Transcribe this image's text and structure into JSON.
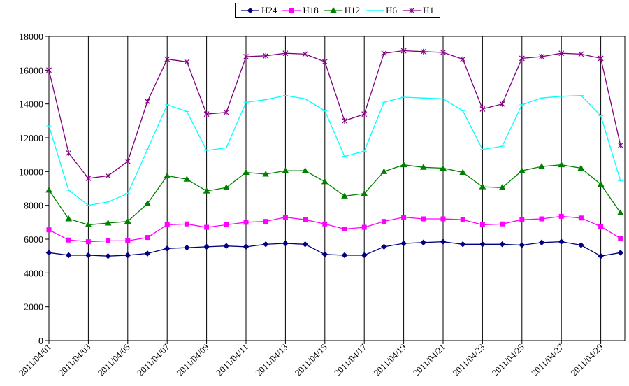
{
  "chart_data": {
    "type": "line",
    "title": "",
    "xlabel": "",
    "ylabel": "",
    "ylim": [
      0,
      18000
    ],
    "yticks": [
      0,
      2000,
      4000,
      6000,
      8000,
      10000,
      12000,
      14000,
      16000,
      18000
    ],
    "x": [
      "2011/04/01",
      "2011/04/02",
      "2011/04/03",
      "2011/04/04",
      "2011/04/05",
      "2011/04/06",
      "2011/04/07",
      "2011/04/08",
      "2011/04/09",
      "2011/04/10",
      "2011/04/11",
      "2011/04/12",
      "2011/04/13",
      "2011/04/14",
      "2011/04/15",
      "2011/04/16",
      "2011/04/17",
      "2011/04/18",
      "2011/04/19",
      "2011/04/20",
      "2011/04/21",
      "2011/04/22",
      "2011/04/23",
      "2011/04/24",
      "2011/04/25",
      "2011/04/26",
      "2011/04/27",
      "2011/04/28",
      "2011/04/29",
      "2011/04/30"
    ],
    "xtick_labels": [
      "2011/04/01",
      "2011/04/03",
      "2011/04/05",
      "2011/04/07",
      "2011/04/09",
      "2011/04/11",
      "2011/04/13",
      "2011/04/15",
      "2011/04/17",
      "2011/04/19",
      "2011/04/21",
      "2011/04/23",
      "2011/04/25",
      "2011/04/27",
      "2011/04/29"
    ],
    "grid": "vertical",
    "legend_position": "top-center",
    "series": [
      {
        "name": "H24",
        "color": "#000080",
        "marker": "diamond",
        "values": [
          5200,
          5050,
          5050,
          5000,
          5050,
          5150,
          5450,
          5500,
          5550,
          5600,
          5550,
          5700,
          5750,
          5700,
          5100,
          5050,
          5050,
          5550,
          5750,
          5800,
          5850,
          5700,
          5700,
          5700,
          5650,
          5800,
          5850,
          5650,
          5000,
          5200
        ]
      },
      {
        "name": "H18",
        "color": "#ff00ff",
        "marker": "square",
        "values": [
          6550,
          5950,
          5850,
          5900,
          5900,
          6100,
          6850,
          6900,
          6700,
          6850,
          7000,
          7050,
          7300,
          7150,
          6900,
          6600,
          6700,
          7050,
          7300,
          7200,
          7200,
          7150,
          6850,
          6900,
          7150,
          7200,
          7350,
          7250,
          6750,
          6050
        ]
      },
      {
        "name": "H12",
        "color": "#008000",
        "marker": "triangle",
        "values": [
          8900,
          7200,
          6850,
          6950,
          7050,
          8100,
          9750,
          9550,
          8850,
          9050,
          9950,
          9850,
          10050,
          10050,
          9400,
          8550,
          8700,
          10000,
          10400,
          10250,
          10200,
          9950,
          9100,
          9050,
          10050,
          10300,
          10400,
          10200,
          9250,
          7550
        ]
      },
      {
        "name": "H6",
        "color": "#00ffff",
        "marker": "line",
        "values": [
          12700,
          8900,
          8000,
          8200,
          8700,
          11300,
          13950,
          13550,
          11250,
          11400,
          14100,
          14250,
          14500,
          14300,
          13600,
          10900,
          11200,
          14100,
          14400,
          14350,
          14300,
          13600,
          11300,
          11500,
          13950,
          14350,
          14450,
          14500,
          13300,
          9450
        ]
      },
      {
        "name": "H1",
        "color": "#800080",
        "marker": "star",
        "values": [
          16000,
          11100,
          9600,
          9750,
          10600,
          14150,
          16650,
          16500,
          13400,
          13500,
          16800,
          16850,
          17000,
          16950,
          16500,
          13000,
          13400,
          17000,
          17150,
          17100,
          17050,
          16650,
          13700,
          14000,
          16700,
          16800,
          17000,
          16950,
          16700,
          11550
        ]
      }
    ]
  }
}
